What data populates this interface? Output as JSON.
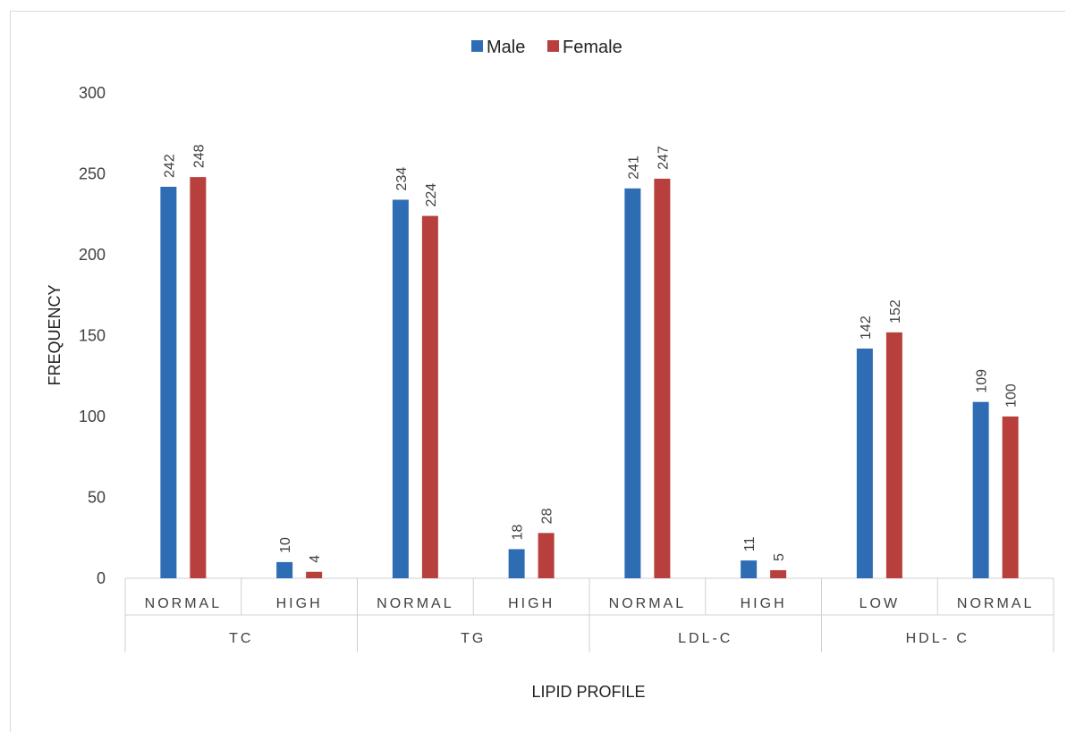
{
  "chart_data": {
    "type": "bar",
    "categories": [
      {
        "label": "NORMAL",
        "group": "TC"
      },
      {
        "label": "HIGH",
        "group": "TC"
      },
      {
        "label": "NORMAL",
        "group": "TG"
      },
      {
        "label": "HIGH",
        "group": "TG"
      },
      {
        "label": "NORMAL",
        "group": "LDL-C"
      },
      {
        "label": "HIGH",
        "group": "LDL-C"
      },
      {
        "label": "LOW",
        "group": "HDL- C"
      },
      {
        "label": "NORMAL",
        "group": "HDL- C"
      }
    ],
    "groups": [
      "TC",
      "TG",
      "LDL-C",
      "HDL- C"
    ],
    "series": [
      {
        "name": "Male",
        "color": "#2E6DB4",
        "values": [
          242,
          10,
          234,
          18,
          241,
          11,
          142,
          109
        ]
      },
      {
        "name": "Female",
        "color": "#B8403C",
        "values": [
          248,
          4,
          224,
          28,
          247,
          5,
          152,
          100
        ]
      }
    ],
    "xlabel": "LIPID PROFILE",
    "ylabel": "FREQUENCY",
    "ylim": [
      0,
      300
    ],
    "yticks": [
      0,
      50,
      100,
      150,
      200,
      250,
      300
    ],
    "grid": false,
    "legend_position": "top-center",
    "data_labels": true
  }
}
